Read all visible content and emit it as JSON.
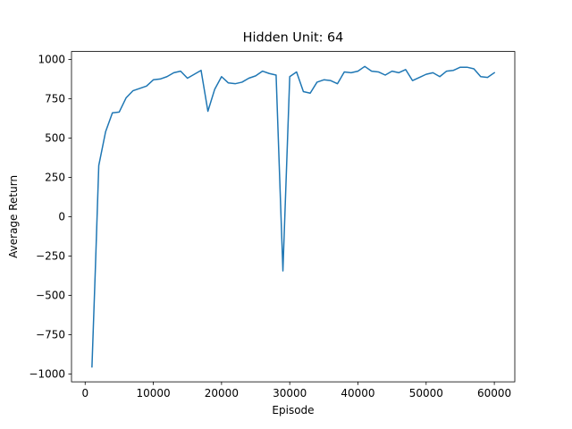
{
  "chart_data": {
    "type": "line",
    "title": "Hidden Unit: 64",
    "xlabel": "Episode",
    "ylabel": "Average Return",
    "xlim": [
      -2000,
      63000
    ],
    "ylim": [
      -1050,
      1050
    ],
    "xticks": [
      0,
      10000,
      20000,
      30000,
      40000,
      50000,
      60000
    ],
    "xtick_labels": [
      "0",
      "10000",
      "20000",
      "30000",
      "40000",
      "50000",
      "60000"
    ],
    "yticks": [
      -1000,
      -750,
      -500,
      -250,
      0,
      250,
      500,
      750,
      1000
    ],
    "ytick_labels": [
      "−1000",
      "−750",
      "−500",
      "−250",
      "0",
      "250",
      "500",
      "750",
      "1000"
    ],
    "grid": false,
    "legend": "none",
    "series": [
      {
        "color": "#1f77b4",
        "x": [
          1000,
          1500,
          2000,
          3000,
          4000,
          5000,
          6000,
          7000,
          8000,
          9000,
          10000,
          11000,
          12000,
          13000,
          14000,
          15000,
          16000,
          17000,
          18000,
          19000,
          20000,
          21000,
          22000,
          23000,
          24000,
          25000,
          26000,
          27000,
          28000,
          29000,
          30000,
          31000,
          32000,
          33000,
          34000,
          35000,
          36000,
          37000,
          38000,
          39000,
          40000,
          41000,
          42000,
          43000,
          44000,
          45000,
          46000,
          47000,
          48000,
          49000,
          50000,
          51000,
          52000,
          53000,
          54000,
          55000,
          56000,
          57000,
          58000,
          59000,
          60000
        ],
        "y": [
          -955,
          -330,
          325,
          540,
          660,
          665,
          755,
          800,
          815,
          830,
          870,
          875,
          890,
          915,
          925,
          880,
          905,
          930,
          670,
          810,
          890,
          850,
          845,
          855,
          880,
          895,
          925,
          910,
          900,
          -345,
          890,
          920,
          795,
          785,
          855,
          870,
          865,
          845,
          920,
          915,
          925,
          955,
          925,
          920,
          900,
          925,
          915,
          935,
          865,
          885,
          905,
          915,
          890,
          925,
          930,
          950,
          950,
          940,
          890,
          885,
          915
        ]
      }
    ]
  }
}
